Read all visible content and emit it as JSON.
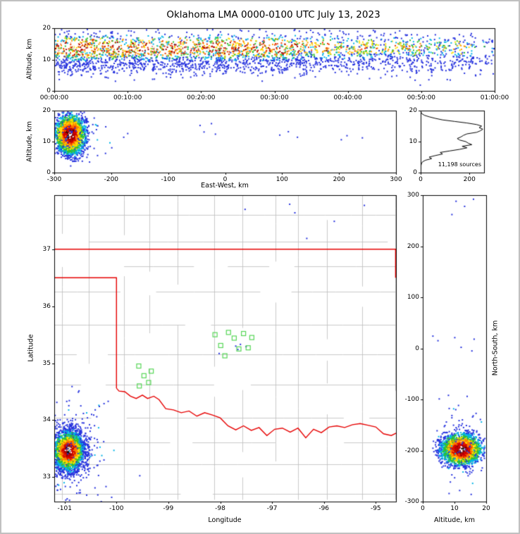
{
  "title": "Oklahoma LMA 0000-0100 UTC July 13, 2023",
  "figure": {
    "background": "#ffffff",
    "axis_color": "#000000",
    "density_colormap": [
      "#2430dd",
      "#00b4e6",
      "#2ebf2e",
      "#ffdf00",
      "#ff7a00",
      "#d40000",
      "#8c0005",
      "#ffffff"
    ]
  },
  "chart_data": [
    {
      "id": "time_height",
      "position": "top",
      "type": "scatter",
      "ylabel": "Altitude, km",
      "xlim": [
        0,
        3600
      ],
      "ylim": [
        0,
        20
      ],
      "xtick_labels": [
        "00:00:00",
        "00:10:00",
        "00:20:00",
        "00:30:00",
        "00:40:00",
        "00:50:00",
        "01:00:00"
      ],
      "ytick_labels": [
        0,
        10,
        20
      ],
      "point_count": 3200,
      "altitude_modes_km": [
        [
          13.8,
          2.3,
          0.62
        ],
        [
          9.0,
          2.0,
          0.38
        ]
      ],
      "time_intensity_profile": [
        0.95,
        1.0,
        0.9,
        0.8,
        0.92,
        0.75,
        0.85,
        0.8,
        0.9,
        0.72,
        0.82,
        0.92,
        0.78,
        0.7,
        0.84,
        0.88,
        0.72,
        0.6,
        0.66,
        0.52,
        0.58,
        0.62,
        0.46,
        0.52,
        0.56,
        0.42,
        0.46,
        0.5,
        0.36,
        0.3
      ],
      "low_altitude_outliers": [
        [
          620,
          5.0
        ],
        [
          1050,
          4.2
        ],
        [
          1700,
          3.1
        ],
        [
          2760,
          4.6
        ],
        [
          2950,
          3.4
        ]
      ]
    },
    {
      "id": "ew_height",
      "position": "middle-left",
      "type": "scatter",
      "xlabel": "East-West, km",
      "ylabel": "Altitude, km",
      "xlim": [
        -300,
        300
      ],
      "ylim": [
        0,
        20
      ],
      "xtick_labels": [
        -300,
        -200,
        -100,
        0,
        100,
        200,
        300
      ],
      "ytick_labels": [
        0,
        10,
        20
      ],
      "cluster": {
        "center_km": -272,
        "sigma_km": 13,
        "count": 2300
      },
      "sparse_points_km_alt": [
        [
          -256,
          4.5
        ],
        [
          -252,
          6.0
        ],
        [
          -247,
          9.5
        ],
        [
          -246,
          12.4
        ],
        [
          -238,
          3.4
        ],
        [
          -230,
          7.8
        ],
        [
          -224,
          5.5
        ],
        [
          -210,
          6.2
        ],
        [
          -199,
          8.0
        ],
        [
          -178,
          11.4
        ],
        [
          -171,
          12.6
        ],
        [
          -44,
          15.2
        ],
        [
          -37,
          13.1
        ],
        [
          -24,
          15.8
        ],
        [
          -17,
          12.4
        ],
        [
          96,
          12.1
        ],
        [
          111,
          13.2
        ],
        [
          127,
          11.4
        ],
        [
          204,
          10.6
        ],
        [
          214,
          11.9
        ],
        [
          241,
          11.2
        ]
      ]
    },
    {
      "id": "source_altitude_histogram",
      "position": "middle-right",
      "type": "line",
      "xlim": [
        0,
        260
      ],
      "ylim": [
        0,
        20
      ],
      "xtick_labels": [
        0,
        200
      ],
      "ytick_labels": [
        0,
        10,
        20
      ],
      "annotation": "11,198 sources",
      "line_color": "#000000",
      "altitude_km": [
        0,
        0.5,
        1,
        1.5,
        2,
        2.5,
        3,
        3.5,
        4,
        4.5,
        5,
        5.5,
        6,
        6.5,
        7,
        7.5,
        8,
        8.5,
        9,
        9.5,
        10,
        10.5,
        11,
        11.5,
        12,
        12.5,
        13,
        13.5,
        14,
        14.5,
        15,
        15.5,
        16,
        16.5,
        17,
        17.5,
        18,
        18.5,
        19,
        19.5,
        20
      ],
      "counts": [
        0,
        0,
        0,
        0,
        1,
        2,
        4,
        8,
        20,
        45,
        35,
        60,
        90,
        80,
        120,
        160,
        190,
        170,
        210,
        195,
        185,
        160,
        150,
        165,
        175,
        190,
        230,
        245,
        255,
        240,
        250,
        230,
        190,
        140,
        90,
        60,
        35,
        15,
        5,
        2,
        0
      ]
    },
    {
      "id": "plan_view",
      "position": "main",
      "type": "scatter",
      "xlabel": "Longitude",
      "ylabel": "Latitude",
      "xlim": [
        -101.2,
        -94.61
      ],
      "ylim": [
        32.57,
        37.95
      ],
      "xtick_labels": [
        -101,
        -100,
        -99,
        -98,
        -97,
        -96,
        -95
      ],
      "ytick_labels": [
        33,
        34,
        35,
        36,
        37
      ],
      "cluster": {
        "center_lon_lat": [
          -100.92,
          33.46
        ],
        "sigma_deg": [
          0.16,
          0.19
        ],
        "count": 2600
      },
      "trail_points": [
        [
          -100.84,
          33.7
        ],
        [
          -100.77,
          33.79
        ],
        [
          -100.7,
          33.88
        ],
        [
          -100.63,
          33.95
        ],
        [
          -100.56,
          34.04
        ],
        [
          -100.48,
          34.1
        ],
        [
          -100.41,
          34.18
        ],
        [
          -100.33,
          34.24
        ],
        [
          -100.24,
          34.29
        ],
        [
          -100.16,
          34.33
        ],
        [
          -100.52,
          33.92
        ],
        [
          -100.66,
          34.02
        ],
        [
          -100.38,
          34.06
        ],
        [
          -101.02,
          33.95
        ]
      ],
      "sparse_points": [
        [
          -96.66,
          37.79
        ],
        [
          -96.56,
          37.64
        ],
        [
          -95.8,
          37.49
        ],
        [
          -95.22,
          37.77
        ],
        [
          -97.52,
          37.7
        ],
        [
          -96.33,
          37.19
        ],
        [
          -97.7,
          35.3
        ],
        [
          -97.61,
          35.33
        ],
        [
          -97.66,
          35.24
        ],
        [
          -97.5,
          35.29
        ],
        [
          -98.02,
          35.17
        ]
      ],
      "stations": [
        [
          -98.1,
          35.5
        ],
        [
          -97.99,
          35.31
        ],
        [
          -97.91,
          35.13
        ],
        [
          -97.73,
          35.44
        ],
        [
          -97.64,
          35.25
        ],
        [
          -97.55,
          35.52
        ],
        [
          -97.46,
          35.27
        ],
        [
          -97.39,
          35.45
        ],
        [
          -97.84,
          35.54
        ],
        [
          -99.57,
          34.95
        ],
        [
          -99.47,
          34.78
        ],
        [
          -99.56,
          34.6
        ],
        [
          -99.38,
          34.66
        ],
        [
          -99.33,
          34.86
        ]
      ],
      "station_color": "#57d657",
      "state_border_color": "#e60000",
      "county_line_color": "#bcbcbc",
      "state_border": {
        "north_lat": 37.0,
        "panhandle_south_lat": 36.5,
        "west_meridian_lon": -100.0,
        "meridian_lat_range": [
          34.56,
          36.5
        ],
        "east_segment": [
          [
            -94.618,
            37.0
          ],
          [
            -94.618,
            36.5
          ]
        ],
        "red_river_lon_lat": [
          [
            -100.0,
            34.56
          ],
          [
            -99.95,
            34.51
          ],
          [
            -99.84,
            34.5
          ],
          [
            -99.73,
            34.42
          ],
          [
            -99.62,
            34.38
          ],
          [
            -99.5,
            34.44
          ],
          [
            -99.4,
            34.38
          ],
          [
            -99.28,
            34.42
          ],
          [
            -99.18,
            34.36
          ],
          [
            -99.05,
            34.2
          ],
          [
            -98.9,
            34.18
          ],
          [
            -98.75,
            34.13
          ],
          [
            -98.6,
            34.16
          ],
          [
            -98.45,
            34.07
          ],
          [
            -98.3,
            34.13
          ],
          [
            -98.15,
            34.09
          ],
          [
            -98.0,
            34.04
          ],
          [
            -97.85,
            33.9
          ],
          [
            -97.7,
            33.83
          ],
          [
            -97.55,
            33.9
          ],
          [
            -97.4,
            33.82
          ],
          [
            -97.25,
            33.87
          ],
          [
            -97.1,
            33.73
          ],
          [
            -96.95,
            33.84
          ],
          [
            -96.8,
            33.86
          ],
          [
            -96.65,
            33.79
          ],
          [
            -96.5,
            33.86
          ],
          [
            -96.35,
            33.69
          ],
          [
            -96.2,
            33.84
          ],
          [
            -96.05,
            33.78
          ],
          [
            -95.9,
            33.88
          ],
          [
            -95.75,
            33.9
          ],
          [
            -95.6,
            33.87
          ],
          [
            -95.45,
            33.92
          ],
          [
            -95.3,
            33.94
          ],
          [
            -95.15,
            33.91
          ],
          [
            -95.0,
            33.88
          ],
          [
            -94.85,
            33.76
          ],
          [
            -94.7,
            33.73
          ],
          [
            -94.61,
            33.77
          ]
        ]
      }
    },
    {
      "id": "ns_height",
      "position": "right",
      "type": "scatter",
      "xlabel": "Altitude, km",
      "ylabel": "North-South, km",
      "xlim": [
        0,
        20
      ],
      "ylim": [
        -300,
        300
      ],
      "xtick_labels": [
        0,
        10,
        20
      ],
      "ytick_labels": [
        -300,
        -200,
        -100,
        0,
        100,
        200,
        300
      ],
      "cluster": {
        "center_km": -198,
        "sigma_km": 15,
        "count": 2300
      },
      "sparse_points_alt_ns": [
        [
          10.5,
          288
        ],
        [
          13.2,
          278
        ],
        [
          16.0,
          292
        ],
        [
          9.2,
          262
        ],
        [
          16.2,
          18
        ],
        [
          10.1,
          21
        ],
        [
          4.8,
          15
        ],
        [
          3.2,
          24
        ],
        [
          12.1,
          2
        ],
        [
          15.5,
          -5
        ],
        [
          14.0,
          -94
        ],
        [
          8.1,
          -92
        ],
        [
          5.2,
          -99
        ],
        [
          10.4,
          -120
        ],
        [
          12.5,
          -140
        ],
        [
          7.0,
          -151
        ],
        [
          9.2,
          -166
        ]
      ]
    }
  ]
}
